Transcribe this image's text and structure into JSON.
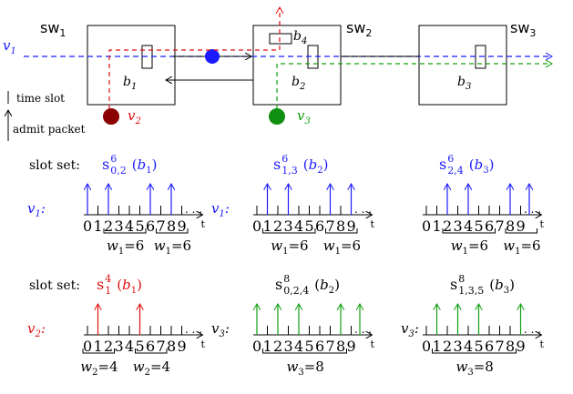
{
  "switches": [
    {
      "name": "sw",
      "sub": "1"
    },
    {
      "name": "sw",
      "sub": "2"
    },
    {
      "name": "sw",
      "sub": "3"
    }
  ],
  "buffers": [
    {
      "name": "b",
      "sub": "1"
    },
    {
      "name": "b",
      "sub": "4"
    },
    {
      "name": "b",
      "sub": "2"
    },
    {
      "name": "b",
      "sub": "3"
    }
  ],
  "flows": [
    {
      "name": "v",
      "sub": "1",
      "color": "#1a1aff"
    },
    {
      "name": "v",
      "sub": "2",
      "color": "#e01010"
    },
    {
      "name": "v",
      "sub": "3",
      "color": "#10a010"
    }
  ],
  "legend": {
    "time_slot": "time slot",
    "admit_packet": "admit packet"
  },
  "colors": {
    "v1": "#1a1aff",
    "v2": "#e01010",
    "v3": "#10a010",
    "v2_node": "#8b0000",
    "v3_node": "#109010",
    "black": "#000000"
  },
  "row1": {
    "label": "slot set:",
    "sets": [
      {
        "sup": "6",
        "sub": "0,2",
        "buffer": "b",
        "bsub": "1",
        "color": "#1a1aff"
      },
      {
        "sup": "6",
        "sub": "1,3",
        "buffer": "b",
        "bsub": "2",
        "color": "#1a1aff"
      },
      {
        "sup": "6",
        "sub": "2,4",
        "buffer": "b",
        "bsub": "3",
        "color": "#1a1aff"
      }
    ]
  },
  "row2": {
    "label": "slot set:",
    "sets": [
      {
        "sup": "4",
        "sub": "1",
        "buffer": "b",
        "bsub": "1",
        "color": "#e01010"
      },
      {
        "sup": "8",
        "sub": "0,2,4",
        "buffer": "b",
        "bsub": "2",
        "color": "#000000"
      },
      {
        "sup": "8",
        "sub": "1,3,5",
        "buffer": "b",
        "bsub": "3",
        "color": "#000000"
      }
    ]
  },
  "timelines": {
    "axis_labels": [
      "0",
      "1",
      "2",
      "3",
      "4",
      "5",
      "6",
      "7",
      "8",
      "9"
    ],
    "t_label": "t",
    "ellipsis": ". . .",
    "row1": [
      {
        "flow": "v",
        "sub": "1",
        "color": "#1a1aff",
        "arrows": [
          0,
          2,
          6,
          8
        ],
        "brackets": [
          {
            "w": "w",
            "wsub": "1",
            "eq": "=6"
          },
          {
            "w": "w",
            "wsub": "1",
            "eq": "=6"
          }
        ]
      },
      {
        "flow": "v",
        "sub": "1",
        "color": "#1a1aff",
        "arrows": [
          1,
          3,
          7,
          9
        ],
        "brackets": [
          {
            "w": "w",
            "wsub": "1",
            "eq": "=6"
          },
          {
            "w": "w",
            "wsub": "1",
            "eq": "=6"
          }
        ]
      },
      {
        "flow": "",
        "sub": "",
        "color": "#1a1aff",
        "arrows": [
          2,
          4,
          8,
          10
        ],
        "brackets": [
          {
            "w": "w",
            "wsub": "1",
            "eq": "=6"
          },
          {
            "w": "w",
            "wsub": "1",
            "eq": "=6"
          }
        ]
      }
    ],
    "row2": [
      {
        "flow": "v",
        "sub": "2",
        "color": "#e01010",
        "arrows": [
          1,
          5
        ],
        "brackets": [
          {
            "w": "w",
            "wsub": "2",
            "eq": "=4"
          },
          {
            "w": "w",
            "wsub": "2",
            "eq": "=4"
          }
        ]
      },
      {
        "flow": "v",
        "sub": "3",
        "color": "#10a010",
        "arrows": [
          0,
          2,
          4,
          8,
          10
        ],
        "brackets": [
          {
            "w": "w",
            "wsub": "3",
            "eq": "=8"
          }
        ]
      },
      {
        "flow": "v",
        "sub": "3",
        "color": "#10a010",
        "arrows": [
          1,
          3,
          5,
          9
        ],
        "brackets": [
          {
            "w": "w",
            "wsub": "3",
            "eq": "=8"
          }
        ]
      }
    ]
  }
}
